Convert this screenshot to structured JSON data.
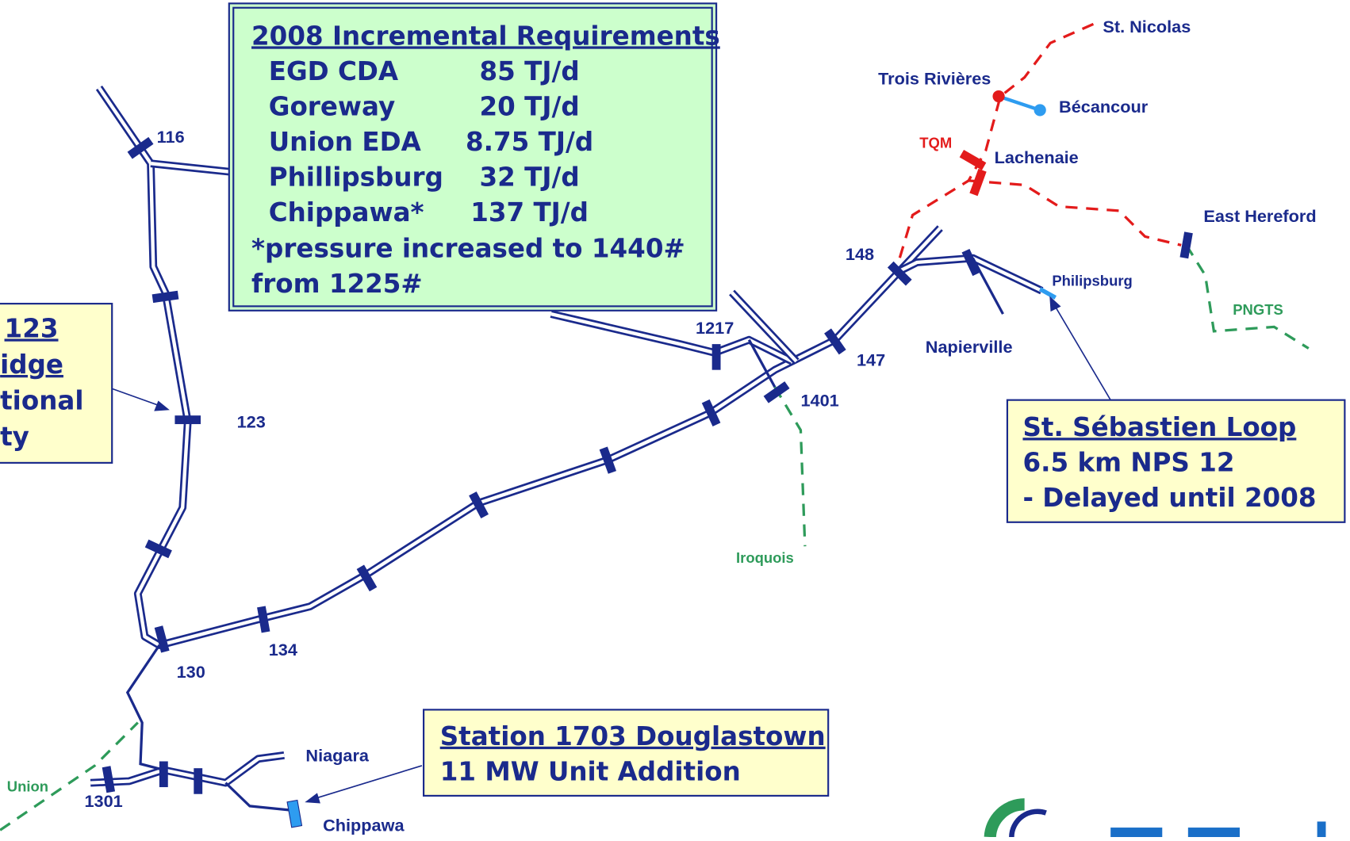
{
  "requirements_box": {
    "title": "2008 Incremental Requirements",
    "rows": [
      [
        "EGD CDA",
        "85 TJ/d"
      ],
      [
        "Goreway",
        "20 TJ/d"
      ],
      [
        "Union EDA",
        "8.75 TJ/d"
      ],
      [
        "Phillipsburg",
        "32 TJ/d"
      ],
      [
        "Chippawa*",
        "137 TJ/d"
      ]
    ],
    "note": [
      "*pressure increased to 1440#",
      "from 1225#"
    ]
  },
  "left_box": {
    "lines": [
      "123",
      "idge",
      "tional",
      "ty"
    ]
  },
  "loop_box": {
    "title": "St. Sébastien Loop",
    "lines": [
      "6.5 km  NPS 12",
      "- Delayed until 2008"
    ]
  },
  "station_box": {
    "title": "Station 1703 Douglastown",
    "lines": [
      "11 MW Unit Addition"
    ]
  },
  "labels": {
    "s116": "116",
    "s123": "123",
    "s1217": "1217",
    "s148": "148",
    "s147": "147",
    "s1401": "1401",
    "s134": "134",
    "s130": "130",
    "s1301": "1301",
    "niagara": "Niagara",
    "chippawa": "Chippawa",
    "napierville": "Napierville",
    "philipsburg": "Philipsburg",
    "st_nicolas": "St. Nicolas",
    "trois_rivieres": "Trois Rivières",
    "becancour": "Bécancour",
    "lachenaie": "Lachenaie",
    "east_hereford": "East Hereford",
    "tqm": "TQM",
    "iroquois": "Iroquois",
    "pngts": "PNGTS",
    "union": "Union"
  }
}
